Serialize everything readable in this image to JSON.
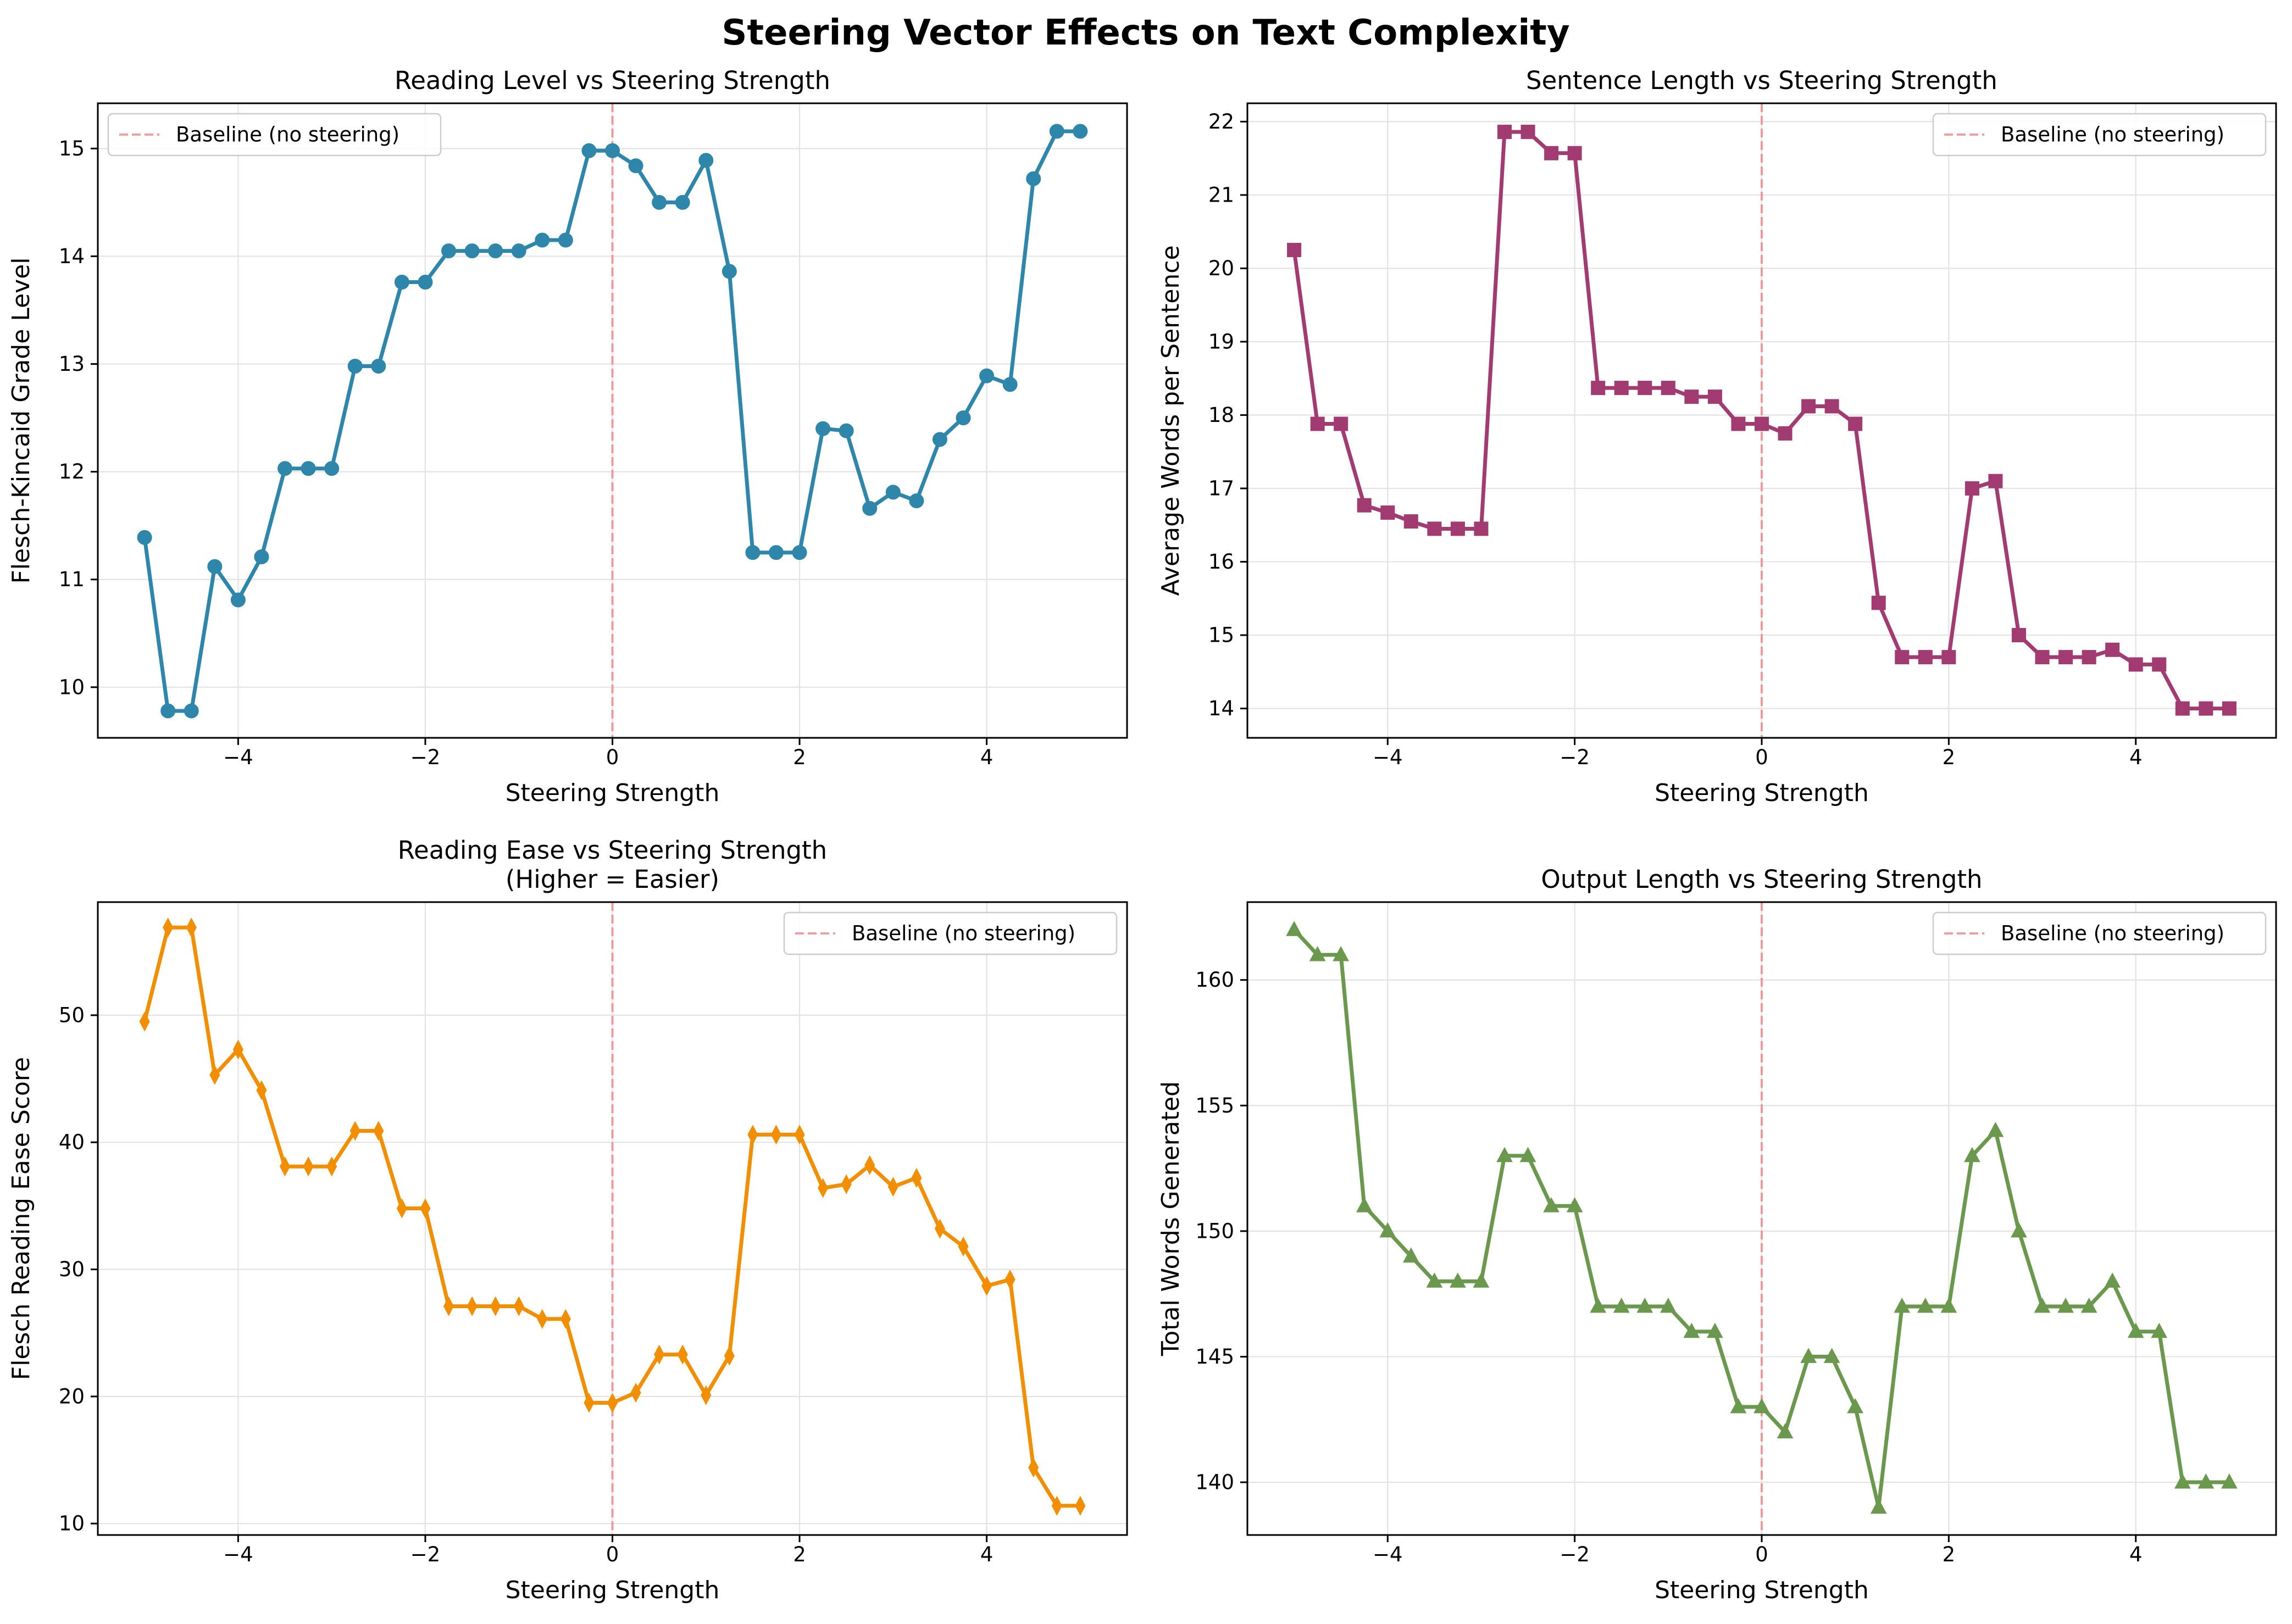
{
  "figure": {
    "title": "Steering Vector Effects on Text Complexity"
  },
  "chart_data": [
    {
      "type": "line",
      "title": "Reading Level vs Steering Strength",
      "xlabel": "Steering Strength",
      "ylabel": "Flesch-Kincaid Grade Level",
      "xlim": [
        -5.5,
        5.5
      ],
      "ylim": [
        9.53,
        15.42
      ],
      "xticks": [
        -4,
        -2,
        0,
        2,
        4
      ],
      "yticks": [
        10,
        11,
        12,
        13,
        14,
        15
      ],
      "grid": true,
      "legend_position": "upper left",
      "baseline": {
        "x": 0,
        "label": "Baseline (no steering)",
        "color": "#f07f7f"
      },
      "series": [
        {
          "marker": "circle",
          "color": "#2e86ab",
          "x": [
            -5,
            -4.75,
            -4.5,
            -4.25,
            -4,
            -3.75,
            -3.5,
            -3.25,
            -3,
            -2.75,
            -2.5,
            -2.25,
            -2,
            -1.75,
            -1.5,
            -1.25,
            -1,
            -0.75,
            -0.5,
            -0.25,
            0,
            0.25,
            0.5,
            0.75,
            1,
            1.25,
            1.5,
            1.75,
            2,
            2.25,
            2.5,
            2.75,
            3,
            3.25,
            3.5,
            3.75,
            4,
            4.25,
            4.5,
            4.75,
            5
          ],
          "y": [
            11.39,
            9.78,
            9.78,
            11.12,
            10.81,
            11.21,
            12.03,
            12.03,
            12.03,
            12.98,
            12.98,
            13.76,
            13.76,
            14.05,
            14.05,
            14.05,
            14.05,
            14.15,
            14.15,
            14.98,
            14.98,
            14.84,
            14.5,
            14.5,
            14.89,
            13.86,
            11.25,
            11.25,
            11.25,
            12.4,
            12.38,
            11.66,
            11.81,
            11.73,
            12.3,
            12.5,
            12.89,
            12.81,
            14.72,
            15.16,
            15.16
          ]
        }
      ]
    },
    {
      "type": "line",
      "title": "Sentence Length vs Steering Strength",
      "xlabel": "Steering Strength",
      "ylabel": "Average Words per Sentence",
      "xlim": [
        -5.5,
        5.5
      ],
      "ylim": [
        13.6,
        22.25
      ],
      "xticks": [
        -4,
        -2,
        0,
        2,
        4
      ],
      "yticks": [
        14,
        15,
        16,
        17,
        18,
        19,
        20,
        21,
        22
      ],
      "grid": true,
      "legend_position": "upper right",
      "baseline": {
        "x": 0,
        "label": "Baseline (no steering)",
        "color": "#f07f7f"
      },
      "series": [
        {
          "marker": "square",
          "color": "#a23b72",
          "x": [
            -5,
            -4.75,
            -4.5,
            -4.25,
            -4,
            -3.75,
            -3.5,
            -3.25,
            -3,
            -2.75,
            -2.5,
            -2.25,
            -2,
            -1.75,
            -1.5,
            -1.25,
            -1,
            -0.75,
            -0.5,
            -0.25,
            0,
            0.25,
            0.5,
            0.75,
            1,
            1.25,
            1.5,
            1.75,
            2,
            2.25,
            2.5,
            2.75,
            3,
            3.25,
            3.5,
            3.75,
            4,
            4.25,
            4.5,
            4.75,
            5
          ],
          "y": [
            20.25,
            17.88,
            17.88,
            16.77,
            16.67,
            16.55,
            16.45,
            16.45,
            16.45,
            21.86,
            21.86,
            21.57,
            21.57,
            18.37,
            18.37,
            18.37,
            18.37,
            18.25,
            18.25,
            17.88,
            17.88,
            17.75,
            18.12,
            18.12,
            17.88,
            15.44,
            14.7,
            14.7,
            14.7,
            17.0,
            17.1,
            15.0,
            14.7,
            14.7,
            14.7,
            14.8,
            14.6,
            14.6,
            14.0,
            14.0,
            14.0
          ]
        }
      ]
    },
    {
      "type": "line",
      "title": "Reading Ease vs Steering Strength\n(Higher = Easier)",
      "xlabel": "Steering Strength",
      "ylabel": "Flesch Reading Ease Score",
      "xlim": [
        -5.5,
        5.5
      ],
      "ylim": [
        9.1,
        58.9
      ],
      "xticks": [
        -4,
        -2,
        0,
        2,
        4
      ],
      "yticks": [
        10,
        20,
        30,
        40,
        50
      ],
      "grid": true,
      "legend_position": "upper right",
      "baseline": {
        "x": 0,
        "label": "Baseline (no steering)",
        "color": "#f07f7f"
      },
      "series": [
        {
          "marker": "thin_diamond",
          "color": "#f18f01",
          "x": [
            -5,
            -4.75,
            -4.5,
            -4.25,
            -4,
            -3.75,
            -3.5,
            -3.25,
            -3,
            -2.75,
            -2.5,
            -2.25,
            -2,
            -1.75,
            -1.5,
            -1.25,
            -1,
            -0.75,
            -0.5,
            -0.25,
            0,
            0.25,
            0.5,
            0.75,
            1,
            1.25,
            1.5,
            1.75,
            2,
            2.25,
            2.5,
            2.75,
            3,
            3.25,
            3.5,
            3.75,
            4,
            4.25,
            4.5,
            4.75,
            5
          ],
          "y": [
            49.5,
            56.9,
            56.9,
            45.3,
            47.3,
            44.1,
            38.1,
            38.1,
            38.1,
            40.9,
            40.9,
            34.8,
            34.8,
            27.1,
            27.1,
            27.1,
            27.1,
            26.1,
            26.1,
            19.5,
            19.5,
            20.3,
            23.3,
            23.3,
            20.1,
            23.2,
            40.6,
            40.6,
            40.6,
            36.4,
            36.7,
            38.2,
            36.5,
            37.2,
            33.2,
            31.8,
            28.7,
            29.2,
            14.4,
            11.4,
            11.4
          ]
        }
      ]
    },
    {
      "type": "line",
      "title": "Output Length vs Steering Strength",
      "xlabel": "Steering Strength",
      "ylabel": "Total Words Generated",
      "xlim": [
        -5.5,
        5.5
      ],
      "ylim": [
        137.9,
        163.1
      ],
      "xticks": [
        -4,
        -2,
        0,
        2,
        4
      ],
      "yticks": [
        140,
        145,
        150,
        155,
        160
      ],
      "grid": true,
      "legend_position": "upper right",
      "baseline": {
        "x": 0,
        "label": "Baseline (no steering)",
        "color": "#f07f7f"
      },
      "series": [
        {
          "marker": "triangle",
          "color": "#6a994e",
          "x": [
            -5,
            -4.75,
            -4.5,
            -4.25,
            -4,
            -3.75,
            -3.5,
            -3.25,
            -3,
            -2.75,
            -2.5,
            -2.25,
            -2,
            -1.75,
            -1.5,
            -1.25,
            -1,
            -0.75,
            -0.5,
            -0.25,
            0,
            0.25,
            0.5,
            0.75,
            1,
            1.25,
            1.5,
            1.75,
            2,
            2.25,
            2.5,
            2.75,
            3,
            3.25,
            3.5,
            3.75,
            4,
            4.25,
            4.5,
            4.75,
            5
          ],
          "y": [
            162,
            161,
            161,
            151,
            150,
            149,
            148,
            148,
            148,
            153,
            153,
            151,
            151,
            147,
            147,
            147,
            147,
            146,
            146,
            143,
            143,
            142,
            145,
            145,
            143,
            139,
            147,
            147,
            147,
            153,
            154,
            150,
            147,
            147,
            147,
            148,
            146,
            146,
            140,
            140,
            140
          ]
        }
      ]
    }
  ]
}
